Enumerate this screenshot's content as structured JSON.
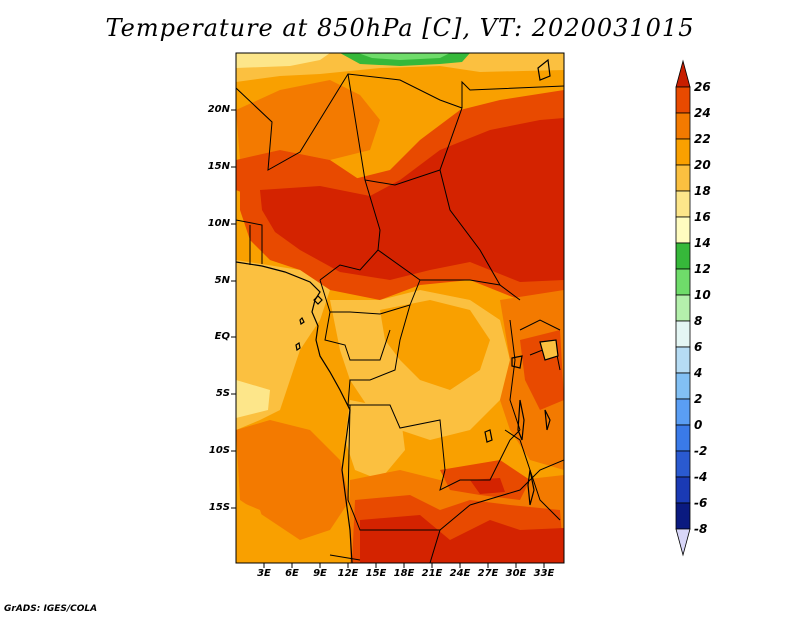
{
  "title": "Temperature at 850hPa [C], VT: 2020031015",
  "footer": "GrADS: IGES/COLA",
  "map": {
    "region": "Central Africa",
    "lon_range": [
      0,
      35
    ],
    "lat_range": [
      -20,
      25
    ],
    "lat_labels": [
      "20N",
      "15N",
      "10N",
      "5N",
      "EQ",
      "5S",
      "10S",
      "15S"
    ],
    "lon_labels": [
      "3E",
      "6E",
      "9E",
      "12E",
      "15E",
      "18E",
      "21E",
      "24E",
      "27E",
      "30E",
      "33E"
    ]
  },
  "colorbar": {
    "labels": [
      "26",
      "24",
      "22",
      "20",
      "18",
      "16",
      "14",
      "12",
      "10",
      "8",
      "6",
      "4",
      "2",
      "0",
      "-2",
      "-4",
      "-6",
      "-8"
    ],
    "colors": [
      "#d42300",
      "#e84a00",
      "#f37a00",
      "#f9a000",
      "#fbc040",
      "#fde68a",
      "#fffcc0",
      "#36b83a",
      "#6fdc6a",
      "#b4f0ac",
      "#e4f6f4",
      "#b6dcf4",
      "#82c0f4",
      "#5a9ef4",
      "#3a7ae8",
      "#2a5ad0",
      "#1a3ab4",
      "#0a1a80"
    ],
    "over_color": "#c81e00",
    "under_color": "#d8d6f8"
  }
}
